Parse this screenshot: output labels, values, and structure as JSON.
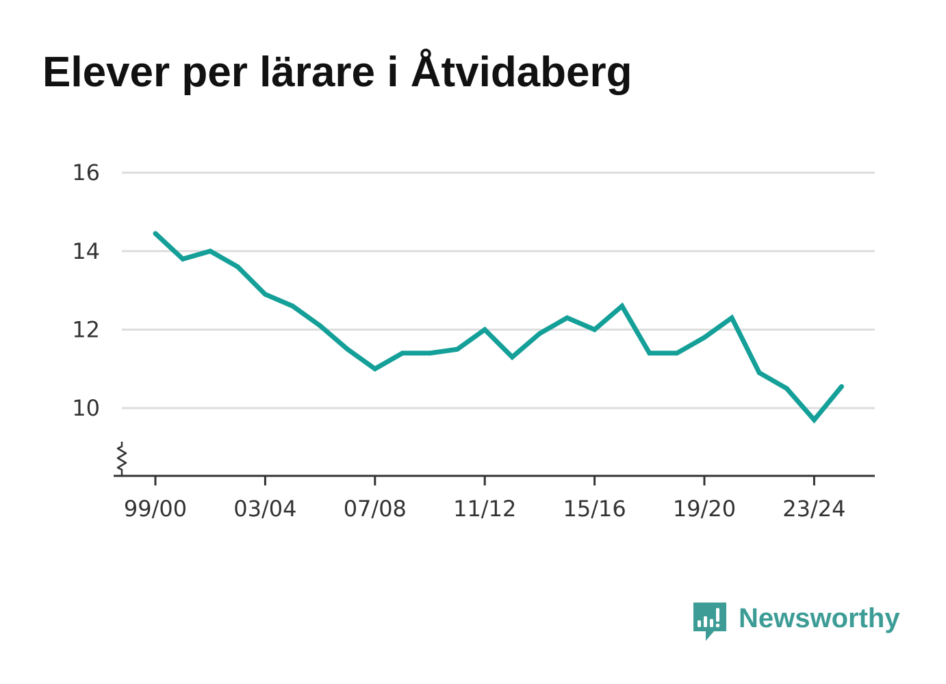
{
  "brand": {
    "name": "Newsworthy",
    "icon": "newsworthy-bar-chart-icon",
    "color": "#3d9d96"
  },
  "colors": {
    "line": "#14a098",
    "grid": "#dddddd",
    "axis": "#333333",
    "text": "#333333",
    "title": "#111111"
  },
  "chart_data": {
    "type": "line",
    "title": "Elever per lärare i Åtvidaberg",
    "xlabel": "",
    "ylabel": "",
    "ylim": [
      8.3,
      16
    ],
    "y_ticks": [
      10,
      12,
      14,
      16
    ],
    "y_axis_break": true,
    "grid": true,
    "x_tick_labels": [
      "99/00",
      "03/04",
      "07/08",
      "11/12",
      "15/16",
      "19/20",
      "23/24"
    ],
    "x": [
      "99/00",
      "00/01",
      "01/02",
      "02/03",
      "03/04",
      "04/05",
      "05/06",
      "06/07",
      "07/08",
      "08/09",
      "09/10",
      "10/11",
      "11/12",
      "12/13",
      "13/14",
      "14/15",
      "15/16",
      "16/17",
      "17/18",
      "18/19",
      "19/20",
      "20/21",
      "21/22",
      "22/23",
      "23/24",
      "24/25"
    ],
    "series": [
      {
        "values": [
          14.45,
          13.8,
          14.0,
          13.6,
          12.9,
          12.6,
          12.1,
          11.5,
          11.0,
          11.4,
          11.4,
          11.5,
          12.0,
          11.3,
          11.9,
          12.3,
          12.0,
          12.6,
          11.4,
          11.4,
          11.8,
          12.3,
          10.9,
          10.5,
          9.7,
          10.55
        ]
      }
    ]
  }
}
